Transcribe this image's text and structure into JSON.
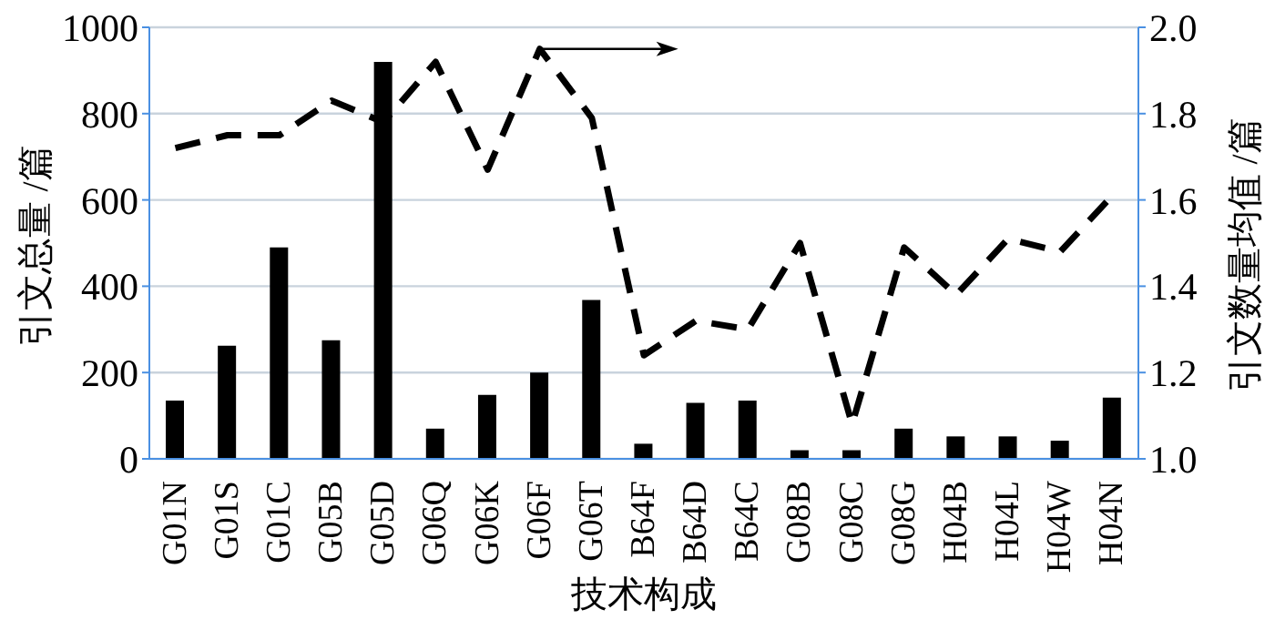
{
  "chart_data": {
    "type": "bar",
    "xlabel": "技术构成",
    "ylabel": "引文总量 /篇",
    "y2label": "引文数量均值 /篇",
    "categories": [
      "G01N",
      "G01S",
      "G01C",
      "G05B",
      "G05D",
      "G06Q",
      "G06K",
      "G06F",
      "G06T",
      "B64F",
      "B64D",
      "B64C",
      "G08B",
      "G08C",
      "G08G",
      "H04B",
      "H04L",
      "H04W",
      "H04N"
    ],
    "series": [
      {
        "color": "#000000",
        "values": [
          135,
          262,
          490,
          275,
          920,
          70,
          148,
          200,
          368,
          35,
          130,
          135,
          20,
          20,
          70,
          52,
          52,
          42,
          142
        ]
      },
      {
        "type": "line",
        "axis": "y2",
        "color": "#000000",
        "line_style": "dashed",
        "marker": "none",
        "values": [
          1.72,
          1.75,
          1.75,
          1.83,
          1.78,
          1.92,
          1.67,
          1.95,
          1.79,
          1.24,
          1.32,
          1.3,
          1.5,
          1.08,
          1.49,
          1.38,
          1.51,
          1.48,
          1.61
        ]
      }
    ],
    "ylim": [
      0,
      1000
    ],
    "yticks": [
      0,
      200,
      400,
      600,
      800,
      1000
    ],
    "y2lim": [
      1.0,
      2.0
    ],
    "y2ticks": [
      {
        "value": 1.0,
        "label": "1.0"
      },
      {
        "value": 1.2,
        "label": "1.2"
      },
      {
        "value": 1.4,
        "label": "1.4"
      },
      {
        "value": 1.6,
        "label": "1.6"
      },
      {
        "value": 1.8,
        "label": "1.8"
      },
      {
        "value": 2.0,
        "label": "2.0"
      }
    ],
    "grid": "y",
    "legend": false
  }
}
